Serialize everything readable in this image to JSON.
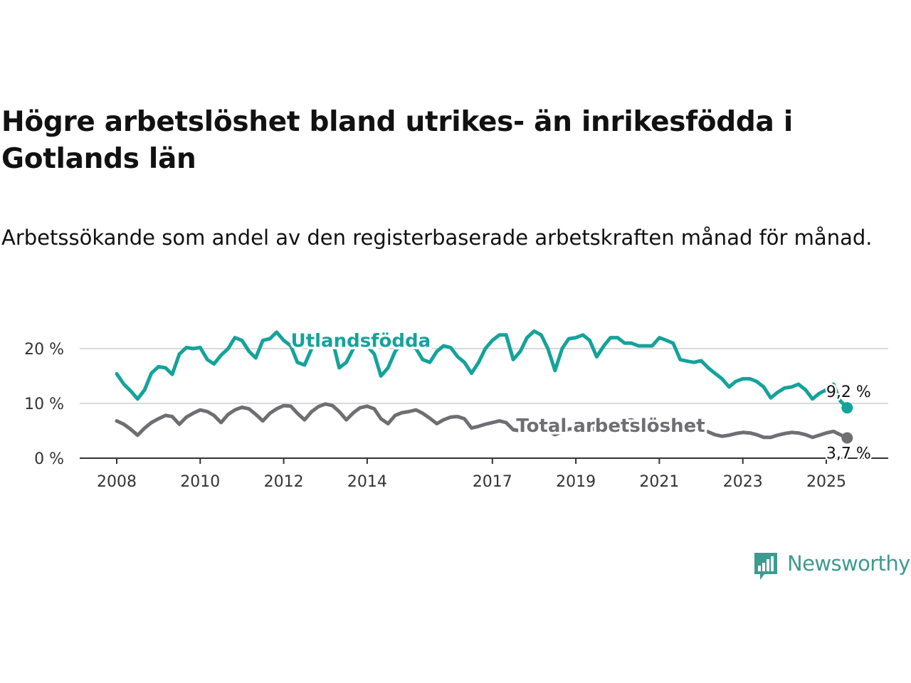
{
  "title": "Högre arbetslöshet bland utrikes- än inrikesfödda i Gotlands län",
  "subtitle": "Arbetssökande som andel av den registerbaserade arbetskraften månad för månad.",
  "logo": {
    "icon": "newsworthy-chart-icon",
    "text": "Newsworthy"
  },
  "colors": {
    "foreign_born": "#14a39a",
    "total": "#6f6e73",
    "grid": "#d9d9d9",
    "axis": "#333333"
  },
  "chart_data": {
    "type": "line",
    "xlabel": "",
    "ylabel": "",
    "ylim": [
      0,
      25
    ],
    "xlim": [
      2008,
      2025.65
    ],
    "grid": true,
    "y_ticks": [
      {
        "value": 0,
        "label": "0 %"
      },
      {
        "value": 10,
        "label": "10 %"
      },
      {
        "value": 20,
        "label": "20 %"
      }
    ],
    "x_ticks": [
      {
        "value": 2008,
        "label": "2008"
      },
      {
        "value": 2010,
        "label": "2010"
      },
      {
        "value": 2012,
        "label": "2012"
      },
      {
        "value": 2014,
        "label": "2014"
      },
      {
        "value": 2017,
        "label": "2017"
      },
      {
        "value": 2019,
        "label": "2019"
      },
      {
        "value": 2021,
        "label": "2021"
      },
      {
        "value": 2023,
        "label": "2023"
      },
      {
        "value": 2025,
        "label": "2025"
      }
    ],
    "series": [
      {
        "name": "Utlandsfödda",
        "color": "#14a39a",
        "last_label": "9,2 %",
        "points": [
          [
            2008.0,
            15.4
          ],
          [
            2008.17,
            13.5
          ],
          [
            2008.33,
            12.3
          ],
          [
            2008.5,
            10.8
          ],
          [
            2008.67,
            12.5
          ],
          [
            2008.83,
            15.5
          ],
          [
            2009.0,
            16.7
          ],
          [
            2009.17,
            16.5
          ],
          [
            2009.33,
            15.3
          ],
          [
            2009.5,
            19.0
          ],
          [
            2009.67,
            20.2
          ],
          [
            2009.83,
            20.0
          ],
          [
            2010.0,
            20.2
          ],
          [
            2010.17,
            18.0
          ],
          [
            2010.33,
            17.2
          ],
          [
            2010.5,
            18.8
          ],
          [
            2010.67,
            20.0
          ],
          [
            2010.83,
            22.0
          ],
          [
            2011.0,
            21.5
          ],
          [
            2011.17,
            19.5
          ],
          [
            2011.33,
            18.3
          ],
          [
            2011.5,
            21.5
          ],
          [
            2011.67,
            21.8
          ],
          [
            2011.83,
            23.0
          ],
          [
            2012.0,
            21.5
          ],
          [
            2012.17,
            20.5
          ],
          [
            2012.33,
            17.5
          ],
          [
            2012.5,
            17.0
          ],
          [
            2012.67,
            20.0
          ],
          [
            2012.83,
            22.0
          ],
          [
            2013.0,
            22.0
          ],
          [
            2013.17,
            21.5
          ],
          [
            2013.33,
            16.5
          ],
          [
            2013.5,
            17.5
          ],
          [
            2013.67,
            20.0
          ],
          [
            2013.83,
            21.5
          ],
          [
            2014.0,
            20.5
          ],
          [
            2014.17,
            19.0
          ],
          [
            2014.33,
            15.0
          ],
          [
            2014.5,
            16.5
          ],
          [
            2014.67,
            19.5
          ],
          [
            2014.83,
            21.0
          ],
          [
            2015.0,
            20.5
          ],
          [
            2015.17,
            20.0
          ],
          [
            2015.33,
            18.0
          ],
          [
            2015.5,
            17.5
          ],
          [
            2015.67,
            19.5
          ],
          [
            2015.83,
            20.5
          ],
          [
            2016.0,
            20.2
          ],
          [
            2016.17,
            18.5
          ],
          [
            2016.33,
            17.5
          ],
          [
            2016.5,
            15.5
          ],
          [
            2016.67,
            17.5
          ],
          [
            2016.83,
            20.0
          ],
          [
            2017.0,
            21.5
          ],
          [
            2017.17,
            22.5
          ],
          [
            2017.33,
            22.5
          ],
          [
            2017.5,
            18.0
          ],
          [
            2017.67,
            19.5
          ],
          [
            2017.83,
            22.0
          ],
          [
            2018.0,
            23.2
          ],
          [
            2018.17,
            22.5
          ],
          [
            2018.33,
            20.0
          ],
          [
            2018.5,
            16.0
          ],
          [
            2018.67,
            20.0
          ],
          [
            2018.83,
            21.8
          ],
          [
            2019.0,
            22.0
          ],
          [
            2019.17,
            22.5
          ],
          [
            2019.33,
            21.5
          ],
          [
            2019.5,
            18.5
          ],
          [
            2019.67,
            20.5
          ],
          [
            2019.83,
            22.0
          ],
          [
            2020.0,
            22.0
          ],
          [
            2020.17,
            21.0
          ],
          [
            2020.33,
            21.0
          ],
          [
            2020.5,
            20.5
          ],
          [
            2020.67,
            20.5
          ],
          [
            2020.83,
            20.5
          ],
          [
            2021.0,
            22.0
          ],
          [
            2021.17,
            21.5
          ],
          [
            2021.33,
            21.0
          ],
          [
            2021.5,
            18.0
          ],
          [
            2021.67,
            17.7
          ],
          [
            2021.83,
            17.5
          ],
          [
            2022.0,
            17.8
          ],
          [
            2022.17,
            16.5
          ],
          [
            2022.33,
            15.5
          ],
          [
            2022.5,
            14.5
          ],
          [
            2022.67,
            13.0
          ],
          [
            2022.83,
            14.0
          ],
          [
            2023.0,
            14.5
          ],
          [
            2023.17,
            14.5
          ],
          [
            2023.33,
            14.0
          ],
          [
            2023.5,
            13.0
          ],
          [
            2023.67,
            11.0
          ],
          [
            2023.83,
            12.0
          ],
          [
            2024.0,
            12.8
          ],
          [
            2024.17,
            13.0
          ],
          [
            2024.33,
            13.5
          ],
          [
            2024.5,
            12.5
          ],
          [
            2024.67,
            10.8
          ],
          [
            2024.83,
            11.8
          ],
          [
            2025.0,
            12.5
          ],
          [
            2025.17,
            13.5
          ],
          [
            2025.33,
            10.5
          ],
          [
            2025.5,
            9.2
          ]
        ]
      },
      {
        "name": "Total arbetslöshet",
        "color": "#6f6e73",
        "last_label": "3,7 %",
        "points": [
          [
            2008.0,
            6.8
          ],
          [
            2008.17,
            6.2
          ],
          [
            2008.33,
            5.3
          ],
          [
            2008.5,
            4.2
          ],
          [
            2008.67,
            5.5
          ],
          [
            2008.83,
            6.5
          ],
          [
            2009.0,
            7.2
          ],
          [
            2009.17,
            7.8
          ],
          [
            2009.33,
            7.6
          ],
          [
            2009.5,
            6.2
          ],
          [
            2009.67,
            7.5
          ],
          [
            2009.83,
            8.2
          ],
          [
            2010.0,
            8.8
          ],
          [
            2010.17,
            8.5
          ],
          [
            2010.33,
            7.8
          ],
          [
            2010.5,
            6.5
          ],
          [
            2010.67,
            8.0
          ],
          [
            2010.83,
            8.8
          ],
          [
            2011.0,
            9.3
          ],
          [
            2011.17,
            9.0
          ],
          [
            2011.33,
            8.0
          ],
          [
            2011.5,
            6.8
          ],
          [
            2011.67,
            8.2
          ],
          [
            2011.83,
            9.0
          ],
          [
            2012.0,
            9.6
          ],
          [
            2012.17,
            9.5
          ],
          [
            2012.33,
            8.2
          ],
          [
            2012.5,
            7.0
          ],
          [
            2012.67,
            8.5
          ],
          [
            2012.83,
            9.4
          ],
          [
            2013.0,
            9.9
          ],
          [
            2013.17,
            9.6
          ],
          [
            2013.33,
            8.5
          ],
          [
            2013.5,
            7.0
          ],
          [
            2013.67,
            8.3
          ],
          [
            2013.83,
            9.2
          ],
          [
            2014.0,
            9.5
          ],
          [
            2014.17,
            9.0
          ],
          [
            2014.33,
            7.2
          ],
          [
            2014.5,
            6.3
          ],
          [
            2014.67,
            7.8
          ],
          [
            2014.83,
            8.3
          ],
          [
            2015.0,
            8.5
          ],
          [
            2015.17,
            8.8
          ],
          [
            2015.33,
            8.2
          ],
          [
            2015.5,
            7.3
          ],
          [
            2015.67,
            6.3
          ],
          [
            2015.83,
            7.0
          ],
          [
            2016.0,
            7.5
          ],
          [
            2016.17,
            7.6
          ],
          [
            2016.33,
            7.2
          ],
          [
            2016.5,
            5.5
          ],
          [
            2016.67,
            5.8
          ],
          [
            2016.83,
            6.2
          ],
          [
            2017.0,
            6.5
          ],
          [
            2017.17,
            6.8
          ],
          [
            2017.33,
            6.5
          ],
          [
            2017.5,
            5.2
          ],
          [
            2017.67,
            5.0
          ],
          [
            2017.83,
            5.3
          ],
          [
            2018.0,
            5.8
          ],
          [
            2018.17,
            5.5
          ],
          [
            2018.33,
            5.0
          ],
          [
            2018.5,
            4.3
          ],
          [
            2018.67,
            4.8
          ],
          [
            2018.83,
            5.3
          ],
          [
            2019.0,
            5.5
          ],
          [
            2019.17,
            5.8
          ],
          [
            2019.33,
            5.7
          ],
          [
            2019.5,
            5.0
          ],
          [
            2019.67,
            5.6
          ],
          [
            2019.83,
            6.0
          ],
          [
            2020.0,
            6.3
          ],
          [
            2020.17,
            6.8
          ],
          [
            2020.33,
            7.0
          ],
          [
            2020.5,
            6.5
          ],
          [
            2020.67,
            6.3
          ],
          [
            2020.83,
            6.0
          ],
          [
            2021.0,
            6.3
          ],
          [
            2021.17,
            6.2
          ],
          [
            2021.33,
            6.0
          ],
          [
            2021.5,
            5.5
          ],
          [
            2021.67,
            5.5
          ],
          [
            2021.83,
            5.3
          ],
          [
            2022.0,
            5.2
          ],
          [
            2022.17,
            4.8
          ],
          [
            2022.33,
            4.3
          ],
          [
            2022.5,
            4.0
          ],
          [
            2022.67,
            4.2
          ],
          [
            2022.83,
            4.5
          ],
          [
            2023.0,
            4.7
          ],
          [
            2023.17,
            4.6
          ],
          [
            2023.33,
            4.3
          ],
          [
            2023.5,
            3.8
          ],
          [
            2023.67,
            3.8
          ],
          [
            2023.83,
            4.2
          ],
          [
            2024.0,
            4.5
          ],
          [
            2024.17,
            4.7
          ],
          [
            2024.33,
            4.6
          ],
          [
            2024.5,
            4.3
          ],
          [
            2024.67,
            3.8
          ],
          [
            2024.83,
            4.2
          ],
          [
            2025.0,
            4.6
          ],
          [
            2025.17,
            4.9
          ],
          [
            2025.33,
            4.3
          ],
          [
            2025.5,
            3.7
          ]
        ]
      }
    ],
    "annotations": [
      {
        "text": "Utlandsfödda",
        "series": "Utlandsfödda",
        "at": [
          2012.0,
          21.5
        ]
      },
      {
        "text": "Total arbetslöshet",
        "series": "Total arbetslöshet",
        "at": [
          2017.4,
          6.0
        ]
      }
    ]
  }
}
